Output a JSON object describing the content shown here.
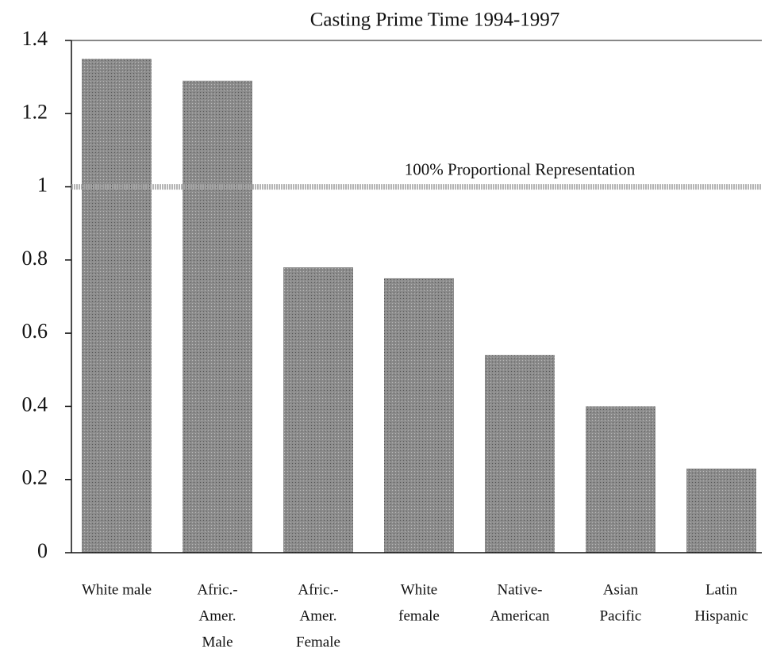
{
  "chart_data": {
    "type": "bar",
    "title": "Casting Prime Time 1994-1997",
    "categories": [
      [
        "White male"
      ],
      [
        "Afric.-",
        "Amer.",
        "Male"
      ],
      [
        "Afric.-",
        "Amer.",
        "Female"
      ],
      [
        "White",
        "female"
      ],
      [
        "Native-",
        "American"
      ],
      [
        "Asian",
        "Pacific"
      ],
      [
        "Latin",
        "Hispanic"
      ]
    ],
    "values": [
      1.35,
      1.29,
      0.78,
      0.75,
      0.54,
      0.4,
      0.23
    ],
    "color": "#8c8c8c",
    "ylim": [
      0,
      1.4
    ],
    "yticks": [
      0,
      0.2,
      0.4,
      0.6,
      0.8,
      1,
      1.2,
      1.4
    ],
    "grid": false,
    "reference_line": {
      "value": 1,
      "label": "100% Proportional Representation"
    }
  }
}
